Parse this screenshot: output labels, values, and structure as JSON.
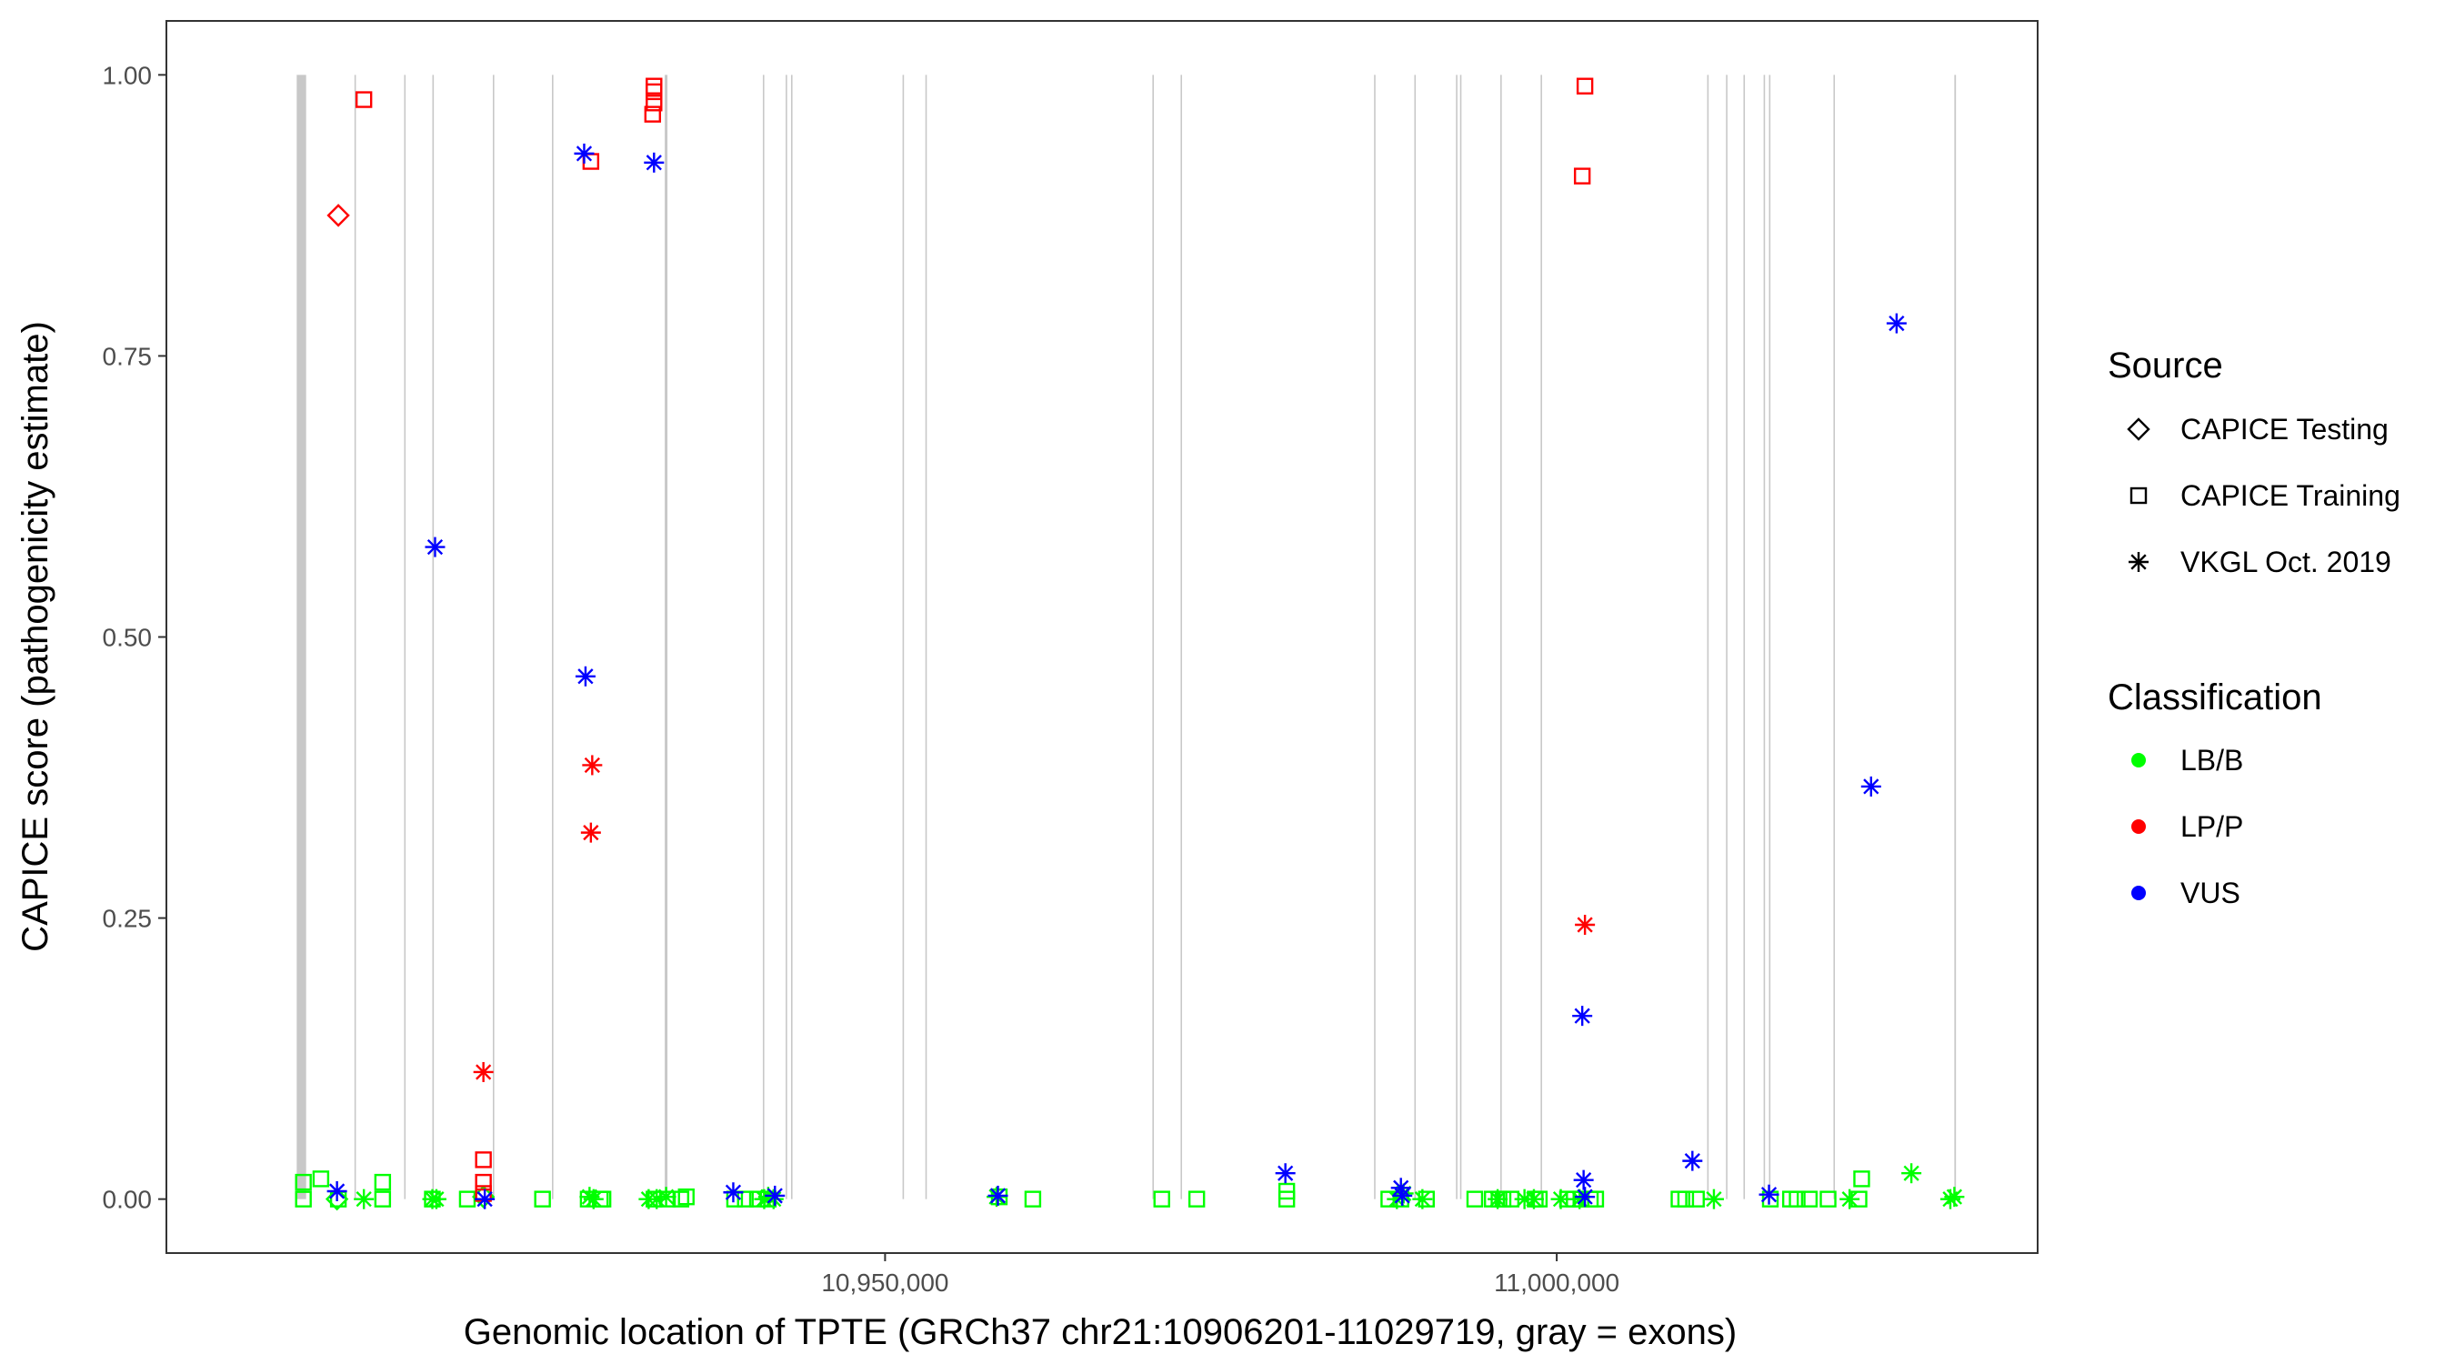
{
  "chart_data": {
    "type": "scatter",
    "xlabel": "Genomic location of TPTE (GRCh37 chr21:10906201-11029719, gray = exons)",
    "ylabel": "CAPICE score (pathogenicity estimate)",
    "xlim": [
      10896500,
      11035800
    ],
    "ylim": [
      -0.048,
      1.048
    ],
    "x_ticks": [
      10950000,
      11000000
    ],
    "x_tick_labels": [
      "10,950,000",
      "11,000,000"
    ],
    "y_ticks": [
      0,
      0.25,
      0.5,
      0.75,
      1
    ],
    "y_tick_labels": [
      "0.00",
      "0.25",
      "0.50",
      "0.75",
      "1.00"
    ],
    "grid": false,
    "legend_position": "right",
    "legend": {
      "source_title": "Source",
      "source_items": [
        {
          "label": "CAPICE Testing",
          "shape": "diamond"
        },
        {
          "label": "CAPICE Training",
          "shape": "square"
        },
        {
          "label": "VKGL Oct. 2019",
          "shape": "asterisk"
        }
      ],
      "class_title": "Classification",
      "class_items": [
        {
          "label": "LB/B",
          "color": "#00FF00"
        },
        {
          "label": "LP/P",
          "color": "#FF0000"
        },
        {
          "label": "VUS",
          "color": "#0000FF"
        }
      ]
    },
    "exon_color": "#c8c8c8",
    "exons": [
      [
        10906201,
        10906901
      ],
      [
        10910500,
        10910600
      ],
      [
        10914200,
        10914300
      ],
      [
        10916300,
        10916400
      ],
      [
        10920800,
        10920900
      ],
      [
        10925200,
        10925300
      ],
      [
        10933600,
        10933800
      ],
      [
        10940900,
        10941000
      ],
      [
        10942600,
        10942700
      ],
      [
        10943000,
        10943100
      ],
      [
        10951300,
        10951400
      ],
      [
        10953000,
        10953100
      ],
      [
        10969900,
        10970000
      ],
      [
        10972000,
        10972100
      ],
      [
        10986400,
        10986500
      ],
      [
        10989400,
        10989500
      ],
      [
        10992500,
        10992600
      ],
      [
        10992800,
        10992900
      ],
      [
        10995800,
        10995900
      ],
      [
        10998800,
        10998900
      ],
      [
        11011200,
        11011300
      ],
      [
        11012600,
        11012700
      ],
      [
        11013900,
        11014000
      ],
      [
        11015400,
        11015500
      ],
      [
        11015800,
        11015900
      ],
      [
        11020600,
        11020700
      ],
      [
        11029600,
        11029719
      ]
    ],
    "series": [
      {
        "name": "CAPICE Testing",
        "shape": "diamond",
        "class": "LP/P",
        "points": [
          [
            10909300,
            0.875
          ]
        ]
      },
      {
        "name": "CAPICE Testing",
        "shape": "diamond",
        "class": "LB/B",
        "points": [
          [
            10909200,
            0.0
          ],
          [
            10920100,
            0.002
          ]
        ]
      },
      {
        "name": "CAPICE Training",
        "shape": "square",
        "class": "LB/B",
        "points": [
          [
            10906700,
            0.0
          ],
          [
            10906700,
            0.015
          ],
          [
            10908000,
            0.018
          ],
          [
            10909300,
            0.0
          ],
          [
            10912600,
            0.0
          ],
          [
            10912600,
            0.015
          ],
          [
            10916300,
            0.0
          ],
          [
            10918900,
            0.0
          ],
          [
            10924500,
            0.0
          ],
          [
            10927900,
            0.0
          ],
          [
            10928800,
            0.0
          ],
          [
            10929000,
            0.0
          ],
          [
            10932800,
            0.0
          ],
          [
            10933800,
            0.0
          ],
          [
            10934800,
            0.0
          ],
          [
            10935200,
            0.002
          ],
          [
            10938800,
            0.0
          ],
          [
            10939600,
            0.0
          ],
          [
            10940500,
            0.0
          ],
          [
            10941300,
            0.0
          ],
          [
            10958500,
            0.002
          ],
          [
            10961000,
            0.0
          ],
          [
            10970600,
            0.0
          ],
          [
            10973200,
            0.0
          ],
          [
            10979900,
            0.0
          ],
          [
            10979900,
            0.007
          ],
          [
            10987500,
            0.0
          ],
          [
            10988400,
            0.0
          ],
          [
            10990300,
            0.0
          ],
          [
            10993900,
            0.0
          ],
          [
            10995200,
            0.0
          ],
          [
            10995700,
            0.0
          ],
          [
            10996000,
            0.0
          ],
          [
            10996600,
            0.0
          ],
          [
            10998400,
            0.0
          ],
          [
            10998700,
            0.0
          ],
          [
            11000800,
            0.0
          ],
          [
            11001300,
            0.0
          ],
          [
            11001800,
            0.0
          ],
          [
            11002500,
            0.0
          ],
          [
            11002900,
            0.0
          ],
          [
            11009100,
            0.0
          ],
          [
            11009600,
            0.0
          ],
          [
            11010400,
            0.0
          ],
          [
            11015900,
            0.0
          ],
          [
            11017400,
            0.0
          ],
          [
            11017900,
            0.0
          ],
          [
            11018800,
            0.0
          ],
          [
            11020200,
            0.0
          ],
          [
            11022500,
            0.0
          ],
          [
            11022700,
            0.018
          ]
        ]
      },
      {
        "name": "CAPICE Training",
        "shape": "square",
        "class": "LP/P",
        "points": [
          [
            10911200,
            0.978
          ],
          [
            10920100,
            0.035
          ],
          [
            10920100,
            0.015
          ],
          [
            10920100,
            0.005
          ],
          [
            10928100,
            0.923
          ],
          [
            10932800,
            0.99
          ],
          [
            10932800,
            0.985
          ],
          [
            10932800,
            0.975
          ],
          [
            10932700,
            0.965
          ],
          [
            11001900,
            0.91
          ],
          [
            11002100,
            0.99
          ]
        ]
      },
      {
        "name": "VKGL Oct. 2019",
        "shape": "asterisk",
        "class": "LB/B",
        "points": [
          [
            10911200,
            0.0
          ],
          [
            10916300,
            0.0
          ],
          [
            10916600,
            0.0
          ],
          [
            10928000,
            0.002
          ],
          [
            10928300,
            0.0
          ],
          [
            10932400,
            0.0
          ],
          [
            10933000,
            0.0
          ],
          [
            10933700,
            0.002
          ],
          [
            10941000,
            0.0
          ],
          [
            10941300,
            0.002
          ],
          [
            10941700,
            0.0
          ],
          [
            10958300,
            0.002
          ],
          [
            10988100,
            0.0
          ],
          [
            10988600,
            0.005
          ],
          [
            10990000,
            0.0
          ],
          [
            10995600,
            0.0
          ],
          [
            10997600,
            0.0
          ],
          [
            10998300,
            0.0
          ],
          [
            11000300,
            0.0
          ],
          [
            11001700,
            0.0
          ],
          [
            11011700,
            0.0
          ],
          [
            11021800,
            0.0
          ],
          [
            11026400,
            0.023
          ],
          [
            11029300,
            0.0
          ],
          [
            11029600,
            0.002
          ]
        ]
      },
      {
        "name": "VKGL Oct. 2019",
        "shape": "asterisk",
        "class": "LP/P",
        "points": [
          [
            10920100,
            0.113
          ],
          [
            10928200,
            0.386
          ],
          [
            10928100,
            0.326
          ],
          [
            11002100,
            0.244
          ]
        ]
      },
      {
        "name": "VKGL Oct. 2019",
        "shape": "asterisk",
        "class": "VUS",
        "points": [
          [
            10909200,
            0.007
          ],
          [
            10916500,
            0.58
          ],
          [
            10920200,
            0.0
          ],
          [
            10927600,
            0.93
          ],
          [
            10927700,
            0.465
          ],
          [
            10932800,
            0.922
          ],
          [
            10938700,
            0.006
          ],
          [
            10941800,
            0.003
          ],
          [
            10958400,
            0.003
          ],
          [
            10979800,
            0.023
          ],
          [
            10988400,
            0.01
          ],
          [
            10988500,
            0.003
          ],
          [
            11001900,
            0.163
          ],
          [
            11002000,
            0.017
          ],
          [
            11002100,
            0.002
          ],
          [
            11010100,
            0.034
          ],
          [
            11015800,
            0.004
          ],
          [
            11023400,
            0.367
          ],
          [
            11025300,
            0.779
          ]
        ]
      }
    ]
  }
}
